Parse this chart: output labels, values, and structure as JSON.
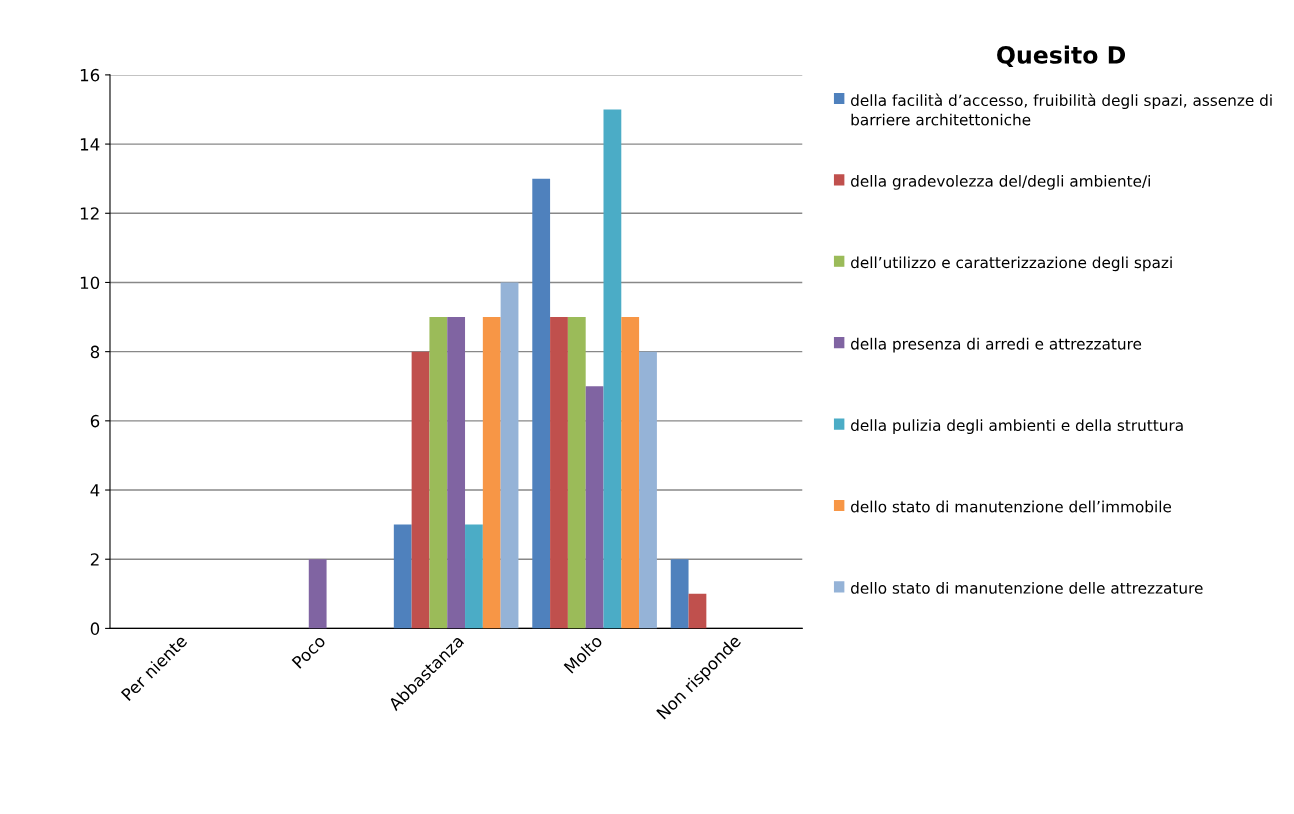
{
  "chart_data": {
    "type": "bar",
    "title": "Quesito D",
    "categories": [
      "Per niente",
      "Poco",
      "Abbastanza",
      "Molto",
      "Non risponde"
    ],
    "series": [
      {
        "name": "della facilità d’accesso, fruibilità degli spazi, assenze di barriere architettoniche",
        "color": "#4f81bd",
        "values": [
          0,
          0,
          3,
          13,
          2
        ]
      },
      {
        "name": "della gradevolezza del/degli ambiente/i",
        "color": "#c0504d",
        "values": [
          0,
          0,
          8,
          9,
          1
        ]
      },
      {
        "name": "dell’utilizzo e caratterizzazione degli spazi",
        "color": "#9bbb59",
        "values": [
          0,
          0,
          9,
          9,
          0
        ]
      },
      {
        "name": "della presenza di arredi e attrezzature",
        "color": "#8064a2",
        "values": [
          0,
          2,
          9,
          7,
          0
        ]
      },
      {
        "name": "della pulizia degli ambienti e della struttura",
        "color": "#4bacc6",
        "values": [
          0,
          0,
          3,
          15,
          0
        ]
      },
      {
        "name": "dello stato di manutenzione dell’immobile",
        "color": "#f79646",
        "values": [
          0,
          0,
          9,
          9,
          0
        ]
      },
      {
        "name": "dello stato di manutenzione delle attrezzature",
        "color": "#95b3d7",
        "values": [
          0,
          0,
          10,
          8,
          0
        ]
      }
    ],
    "ylim": [
      0,
      16
    ],
    "yticks": [
      0,
      2,
      4,
      6,
      8,
      10,
      12,
      14,
      16
    ],
    "grid": "y",
    "legend": "right"
  }
}
